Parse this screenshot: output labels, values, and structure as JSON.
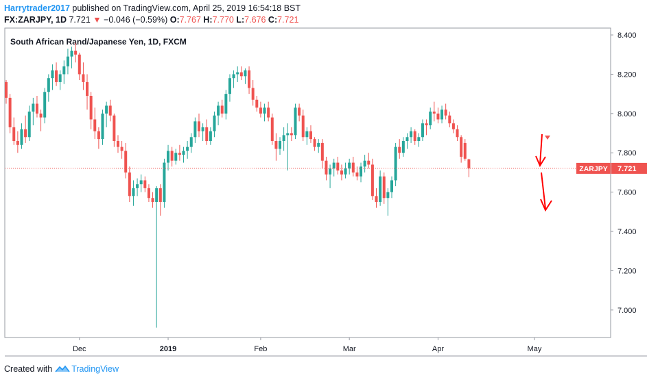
{
  "header": {
    "author": "Harrytrader2017",
    "published_text": "published on TradingView.com, April 25, 2019 16:54:18 BST",
    "symbol": "FX:ZARJPY, 1D",
    "last_price": "7.721",
    "change_arrow": "▼",
    "change": "−0.046 (−0.59%)",
    "o_label": "O:",
    "o_value": "7.767",
    "h_label": "H:",
    "h_value": "7.770",
    "l_label": "L:",
    "l_value": "7.676",
    "c_label": "C:",
    "c_value": "7.721"
  },
  "footer": {
    "created_with": "Created with",
    "brand": "TradingView"
  },
  "chart_data": {
    "type": "candlestick",
    "title": "South African Rand/Japanese Yen, 1D, FXCM",
    "ylim": [
      6.86,
      8.435
    ],
    "y_ticks": [
      "8.400",
      "8.200",
      "8.000",
      "7.800",
      "7.600",
      "7.400",
      "7.200",
      "7.000"
    ],
    "x_labels": [
      {
        "label": "Dec",
        "index": 19
      },
      {
        "label": "2019",
        "index": 42
      },
      {
        "label": "Feb",
        "index": 66
      },
      {
        "label": "Mar",
        "index": 89
      },
      {
        "label": "Apr",
        "index": 112
      },
      {
        "label": "May",
        "index": 137
      }
    ],
    "bold_x_label": "2019",
    "symbol_tag": "ZARJPY",
    "last_price": 7.721,
    "last_price_label": "7.721",
    "colors": {
      "up": "#26a69a",
      "down": "#ef5350",
      "axis": "#9598a1",
      "grid_text": "#131722",
      "arrow": "#ff0000"
    },
    "candles": [
      [
        8.16,
        8.17,
        8.05,
        8.08
      ],
      [
        8.08,
        8.1,
        7.9,
        7.93
      ],
      [
        7.93,
        7.98,
        7.84,
        7.86
      ],
      [
        7.86,
        7.91,
        7.8,
        7.84
      ],
      [
        7.84,
        7.95,
        7.82,
        7.92
      ],
      [
        7.92,
        7.99,
        7.85,
        7.88
      ],
      [
        7.88,
        8.04,
        7.86,
        8.01
      ],
      [
        8.01,
        8.08,
        7.94,
        8.05
      ],
      [
        8.05,
        8.09,
        7.98,
        8.0
      ],
      [
        8.0,
        8.02,
        7.91,
        7.98
      ],
      [
        7.98,
        8.13,
        7.95,
        8.11
      ],
      [
        8.11,
        8.2,
        8.06,
        8.18
      ],
      [
        8.18,
        8.25,
        8.12,
        8.22
      ],
      [
        8.22,
        8.26,
        8.14,
        8.16
      ],
      [
        8.16,
        8.22,
        8.12,
        8.2
      ],
      [
        8.2,
        8.27,
        8.15,
        8.24
      ],
      [
        8.24,
        8.33,
        8.2,
        8.29
      ],
      [
        8.29,
        8.34,
        8.23,
        8.32
      ],
      [
        8.32,
        8.36,
        8.26,
        8.3
      ],
      [
        8.3,
        8.31,
        8.17,
        8.2
      ],
      [
        8.2,
        8.26,
        8.12,
        8.16
      ],
      [
        8.16,
        8.2,
        8.02,
        8.09
      ],
      [
        8.09,
        8.11,
        7.92,
        7.97
      ],
      [
        7.97,
        8.03,
        7.87,
        7.91
      ],
      [
        7.91,
        7.93,
        7.82,
        7.87
      ],
      [
        7.87,
        8.02,
        7.84,
        8.0
      ],
      [
        8.0,
        8.06,
        7.93,
        8.04
      ],
      [
        8.04,
        8.07,
        7.96,
        7.99
      ],
      [
        7.99,
        8.0,
        7.83,
        7.86
      ],
      [
        7.86,
        7.89,
        7.8,
        7.83
      ],
      [
        7.83,
        7.86,
        7.77,
        7.81
      ],
      [
        7.81,
        7.85,
        7.67,
        7.7
      ],
      [
        7.7,
        7.73,
        7.55,
        7.58
      ],
      [
        7.58,
        7.66,
        7.53,
        7.62
      ],
      [
        7.62,
        7.67,
        7.58,
        7.64
      ],
      [
        7.64,
        7.69,
        7.6,
        7.66
      ],
      [
        7.66,
        7.68,
        7.6,
        7.62
      ],
      [
        7.62,
        7.64,
        7.55,
        7.57
      ],
      [
        7.57,
        7.6,
        7.52,
        7.55
      ],
      [
        7.55,
        7.63,
        6.91,
        7.62
      ],
      [
        7.62,
        7.64,
        7.48,
        7.55
      ],
      [
        7.55,
        7.77,
        7.52,
        7.75
      ],
      [
        7.75,
        7.84,
        7.71,
        7.81
      ],
      [
        7.81,
        7.83,
        7.73,
        7.76
      ],
      [
        7.76,
        7.82,
        7.74,
        7.8
      ],
      [
        7.8,
        7.84,
        7.76,
        7.79
      ],
      [
        7.79,
        7.83,
        7.75,
        7.81
      ],
      [
        7.81,
        7.86,
        7.77,
        7.83
      ],
      [
        7.83,
        7.9,
        7.8,
        7.88
      ],
      [
        7.88,
        7.98,
        7.85,
        7.96
      ],
      [
        7.96,
        8.0,
        7.88,
        7.91
      ],
      [
        7.91,
        7.95,
        7.86,
        7.93
      ],
      [
        7.93,
        7.97,
        7.84,
        7.86
      ],
      [
        7.86,
        7.93,
        7.84,
        7.91
      ],
      [
        7.91,
        8.01,
        7.88,
        7.99
      ],
      [
        7.99,
        8.06,
        7.94,
        8.04
      ],
      [
        8.04,
        8.07,
        7.98,
        8.0
      ],
      [
        8.0,
        8.12,
        7.97,
        8.1
      ],
      [
        8.1,
        8.2,
        8.06,
        8.18
      ],
      [
        8.18,
        8.22,
        8.13,
        8.2
      ],
      [
        8.2,
        8.24,
        8.16,
        8.21
      ],
      [
        8.21,
        8.24,
        8.17,
        8.19
      ],
      [
        8.19,
        8.23,
        8.15,
        8.22
      ],
      [
        8.22,
        8.24,
        8.1,
        8.13
      ],
      [
        8.13,
        8.17,
        8.04,
        8.07
      ],
      [
        8.07,
        8.09,
        8.01,
        8.03
      ],
      [
        8.03,
        8.06,
        7.98,
        8.0
      ],
      [
        8.0,
        8.05,
        7.96,
        8.03
      ],
      [
        8.03,
        8.06,
        7.96,
        7.98
      ],
      [
        7.98,
        8.0,
        7.84,
        7.86
      ],
      [
        7.86,
        7.9,
        7.76,
        7.82
      ],
      [
        7.82,
        7.88,
        7.79,
        7.86
      ],
      [
        7.86,
        7.93,
        7.81,
        7.89
      ],
      [
        7.89,
        7.95,
        7.71,
        7.9
      ],
      [
        7.9,
        7.93,
        7.86,
        7.89
      ],
      [
        7.89,
        8.05,
        7.87,
        8.03
      ],
      [
        8.03,
        8.05,
        7.96,
        7.99
      ],
      [
        7.99,
        8.02,
        7.86,
        7.88
      ],
      [
        7.88,
        7.93,
        7.84,
        7.91
      ],
      [
        7.91,
        7.94,
        7.85,
        7.87
      ],
      [
        7.87,
        7.88,
        7.81,
        7.83
      ],
      [
        7.83,
        7.87,
        7.8,
        7.85
      ],
      [
        7.85,
        7.87,
        7.72,
        7.76
      ],
      [
        7.76,
        7.78,
        7.66,
        7.69
      ],
      [
        7.69,
        7.74,
        7.62,
        7.72
      ],
      [
        7.72,
        7.77,
        7.68,
        7.75
      ],
      [
        7.75,
        7.78,
        7.69,
        7.71
      ],
      [
        7.71,
        7.74,
        7.66,
        7.69
      ],
      [
        7.69,
        7.75,
        7.67,
        7.72
      ],
      [
        7.72,
        7.77,
        7.69,
        7.75
      ],
      [
        7.75,
        7.78,
        7.68,
        7.7
      ],
      [
        7.7,
        7.73,
        7.66,
        7.68
      ],
      [
        7.68,
        7.75,
        7.65,
        7.73
      ],
      [
        7.73,
        7.79,
        7.7,
        7.76
      ],
      [
        7.76,
        7.8,
        7.72,
        7.74
      ],
      [
        7.74,
        7.77,
        7.56,
        7.58
      ],
      [
        7.58,
        7.62,
        7.52,
        7.55
      ],
      [
        7.55,
        7.71,
        7.53,
        7.68
      ],
      [
        7.68,
        7.7,
        7.54,
        7.57
      ],
      [
        7.57,
        7.62,
        7.48,
        7.6
      ],
      [
        7.6,
        7.68,
        7.57,
        7.66
      ],
      [
        7.66,
        7.85,
        7.63,
        7.83
      ],
      [
        7.83,
        7.87,
        7.77,
        7.8
      ],
      [
        7.8,
        7.88,
        7.78,
        7.86
      ],
      [
        7.86,
        7.9,
        7.82,
        7.88
      ],
      [
        7.88,
        7.93,
        7.85,
        7.91
      ],
      [
        7.91,
        7.92,
        7.84,
        7.86
      ],
      [
        7.86,
        7.9,
        7.83,
        7.88
      ],
      [
        7.88,
        7.97,
        7.86,
        7.95
      ],
      [
        7.95,
        7.97,
        7.89,
        7.94
      ],
      [
        7.94,
        8.03,
        7.92,
        8.01
      ],
      [
        8.01,
        8.06,
        7.96,
        8.0
      ],
      [
        8.0,
        8.03,
        7.95,
        7.97
      ],
      [
        7.97,
        8.04,
        7.95,
        8.02
      ],
      [
        8.02,
        8.05,
        7.97,
        7.99
      ],
      [
        7.99,
        8.01,
        7.93,
        7.95
      ],
      [
        7.95,
        7.97,
        7.9,
        7.92
      ],
      [
        7.92,
        7.94,
        7.86,
        7.88
      ],
      [
        7.88,
        7.89,
        7.75,
        7.78
      ],
      [
        7.85,
        7.87,
        7.76,
        7.77
      ],
      [
        7.767,
        7.77,
        7.676,
        7.721
      ]
    ]
  }
}
